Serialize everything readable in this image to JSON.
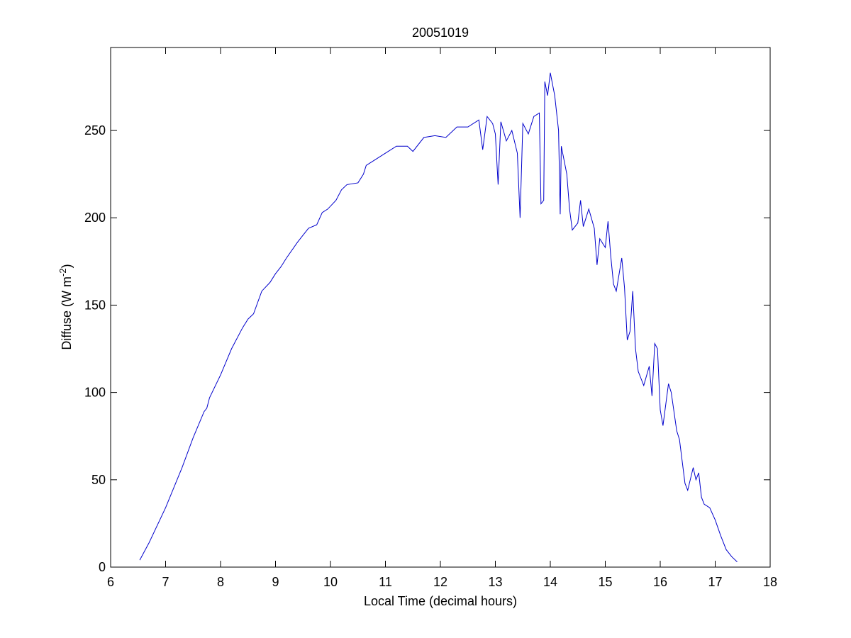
{
  "chart_data": {
    "type": "line",
    "title": "20051019",
    "xlabel": "Local Time (decimal hours)",
    "ylabel": {
      "text": "Diffuse (W m",
      "superscript": "-2",
      "suffix": ")"
    },
    "xlim": [
      6,
      18
    ],
    "xticks": [
      6,
      7,
      8,
      9,
      10,
      11,
      12,
      13,
      14,
      15,
      16,
      17,
      18
    ],
    "ylim": [
      0,
      297.5
    ],
    "yticks": [
      0,
      50,
      100,
      150,
      200,
      250
    ],
    "grid": false,
    "series": [
      {
        "color": "#0000cc",
        "x": [
          6.53,
          6.7,
          7.0,
          7.3,
          7.5,
          7.7,
          7.75,
          7.8,
          8.0,
          8.2,
          8.4,
          8.5,
          8.6,
          8.75,
          8.9,
          9.0,
          9.1,
          9.2,
          9.4,
          9.5,
          9.6,
          9.75,
          9.85,
          9.95,
          10.1,
          10.2,
          10.3,
          10.5,
          10.6,
          10.65,
          10.8,
          11.0,
          11.2,
          11.4,
          11.5,
          11.7,
          11.9,
          12.1,
          12.3,
          12.5,
          12.7,
          12.77,
          12.85,
          12.95,
          13.0,
          13.05,
          13.1,
          13.2,
          13.3,
          13.4,
          13.45,
          13.5,
          13.6,
          13.7,
          13.8,
          13.83,
          13.88,
          13.9,
          13.95,
          14.0,
          14.08,
          14.15,
          14.18,
          14.2,
          14.3,
          14.35,
          14.4,
          14.5,
          14.55,
          14.6,
          14.7,
          14.8,
          14.85,
          14.9,
          15.0,
          15.05,
          15.1,
          15.15,
          15.2,
          15.3,
          15.35,
          15.4,
          15.45,
          15.5,
          15.55,
          15.6,
          15.7,
          15.8,
          15.85,
          15.9,
          15.95,
          16.0,
          16.05,
          16.15,
          16.2,
          16.3,
          16.35,
          16.45,
          16.5,
          16.6,
          16.65,
          16.7,
          16.75,
          16.8,
          16.9,
          17.0,
          17.1,
          17.2,
          17.3,
          17.4
        ],
        "values": [
          4,
          14,
          34,
          57,
          74,
          89,
          91,
          97,
          110,
          125,
          137,
          142,
          145,
          158,
          163,
          168,
          172,
          177,
          186,
          190,
          194,
          196,
          203,
          205,
          210,
          216,
          219,
          220,
          225,
          230,
          233,
          237,
          241,
          241,
          238,
          246,
          247,
          246,
          252,
          252,
          256,
          239,
          258,
          254,
          248,
          219,
          255,
          244,
          250,
          237,
          200,
          254,
          248,
          258,
          260,
          208,
          210,
          278,
          270,
          283,
          270,
          250,
          202,
          241,
          225,
          205,
          193,
          197,
          210,
          195,
          205,
          194,
          173,
          188,
          183,
          198,
          178,
          162,
          158,
          177,
          160,
          130,
          135,
          158,
          125,
          112,
          104,
          115,
          98,
          128,
          125,
          90,
          81,
          105,
          100,
          78,
          73,
          48,
          44,
          57,
          50,
          54,
          40,
          36,
          34,
          27,
          18,
          10,
          6,
          3
        ]
      }
    ]
  }
}
